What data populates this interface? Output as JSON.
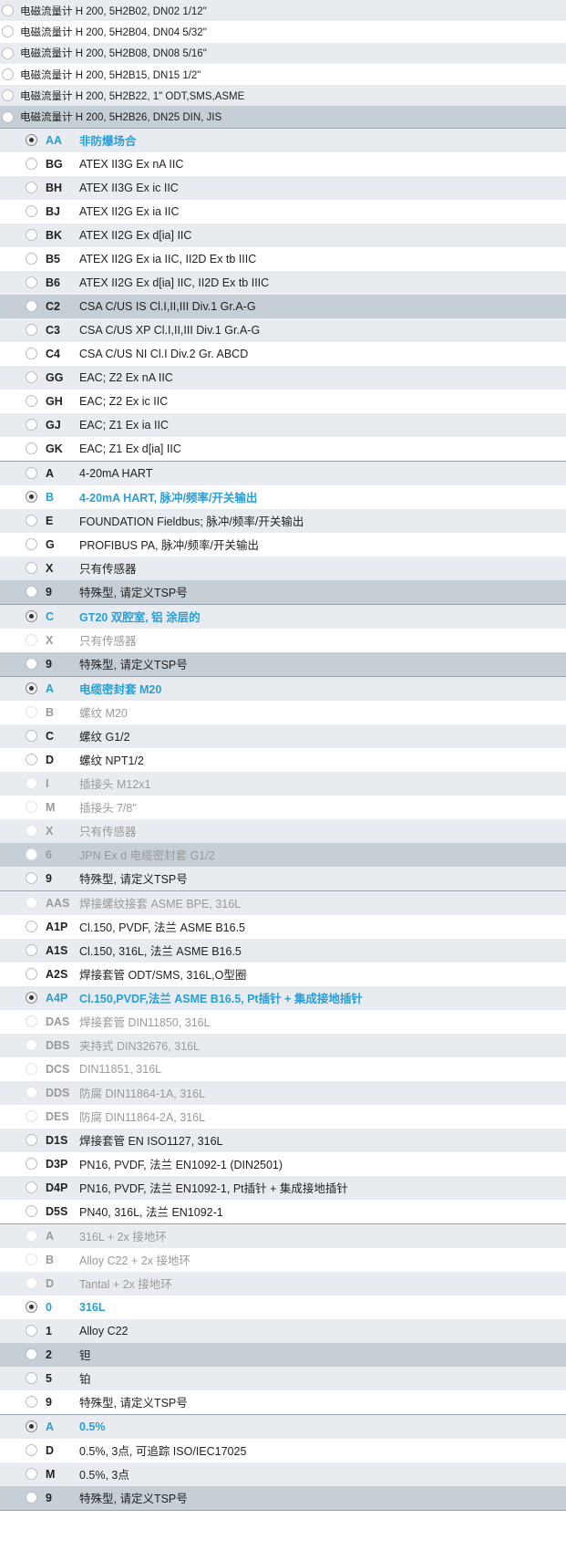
{
  "colors": {
    "selected": "#2a9fd6",
    "row_alt": "#e8ecf0",
    "row_highlight": "#c6cfd6",
    "disabled_text": "#9a9a9a"
  },
  "top_options": [
    {
      "label": "电磁流量计 H 200, 5H2B02, DN02 1/12\"",
      "bg": "grey"
    },
    {
      "label": "电磁流量计 H 200, 5H2B04, DN04 5/32\"",
      "bg": "white"
    },
    {
      "label": "电磁流量计 H 200, 5H2B08, DN08 5/16\"",
      "bg": "grey"
    },
    {
      "label": "电磁流量计 H 200, 5H2B15, DN15 1/2\"",
      "bg": "white"
    },
    {
      "label": "电磁流量计 H 200, 5H2B22, 1\" ODT,SMS,ASME",
      "bg": "grey"
    },
    {
      "label": "电磁流量计 H 200, 5H2B26, DN25 DIN, JIS",
      "bg": "dark"
    }
  ],
  "sections": [
    {
      "options": [
        {
          "code": "AA",
          "text": "非防爆场合",
          "selected": true
        },
        {
          "code": "BG",
          "text": "ATEX II3G Ex nA IIC"
        },
        {
          "code": "BH",
          "text": "ATEX II3G Ex ic IIC"
        },
        {
          "code": "BJ",
          "text": "ATEX II2G Ex ia IIC"
        },
        {
          "code": "BK",
          "text": "ATEX II2G Ex d[ia] IIC"
        },
        {
          "code": "B5",
          "text": "ATEX II2G Ex ia IIC, II2D Ex tb IIIC"
        },
        {
          "code": "B6",
          "text": "ATEX II2G Ex d[ia] IIC, II2D Ex tb IIIC"
        },
        {
          "code": "C2",
          "text": "CSA C/US IS Cl.I,II,III Div.1 Gr.A-G",
          "highlight": true
        },
        {
          "code": "C3",
          "text": "CSA C/US XP Cl.I,II,III Div.1 Gr.A-G"
        },
        {
          "code": "C4",
          "text": "CSA C/US NI Cl.I Div.2 Gr. ABCD"
        },
        {
          "code": "GG",
          "text": "EAC; Z2 Ex nA IIC"
        },
        {
          "code": "GH",
          "text": "EAC; Z2 Ex ic IIC"
        },
        {
          "code": "GJ",
          "text": "EAC; Z1 Ex ia IIC"
        },
        {
          "code": "GK",
          "text": "EAC; Z1 Ex d[ia] IIC"
        }
      ]
    },
    {
      "options": [
        {
          "code": "A",
          "text": "4-20mA HART"
        },
        {
          "code": "B",
          "text": "4-20mA HART, 脉冲/频率/开关输出",
          "selected": true
        },
        {
          "code": "E",
          "text": "FOUNDATION Fieldbus; 脉冲/频率/开关输出"
        },
        {
          "code": "G",
          "text": "PROFIBUS PA, 脉冲/频率/开关输出"
        },
        {
          "code": "X",
          "text": "只有传感器"
        },
        {
          "code": "9",
          "text": "特殊型, 请定义TSP号",
          "highlight": true
        }
      ]
    },
    {
      "options": [
        {
          "code": "C",
          "text": "GT20 双腔室, 铝 涂层的",
          "selected": true
        },
        {
          "code": "X",
          "text": "只有传感器",
          "disabled": true
        },
        {
          "code": "9",
          "text": "特殊型, 请定义TSP号",
          "highlight": true
        }
      ]
    },
    {
      "options": [
        {
          "code": "A",
          "text": "电缆密封套 M20",
          "selected": true
        },
        {
          "code": "B",
          "text": "螺纹 M20",
          "disabled": true
        },
        {
          "code": "C",
          "text": "螺纹 G1/2"
        },
        {
          "code": "D",
          "text": "螺纹 NPT1/2"
        },
        {
          "code": "I",
          "text": "插接头 M12x1",
          "disabled": true
        },
        {
          "code": "M",
          "text": "插接头 7/8\"",
          "disabled": true
        },
        {
          "code": "X",
          "text": "只有传感器",
          "disabled": true
        },
        {
          "code": "6",
          "text": "JPN Ex d 电缆密封套 G1/2",
          "disabled": true,
          "highlight": true
        },
        {
          "code": "9",
          "text": "特殊型, 请定义TSP号"
        }
      ]
    },
    {
      "options": [
        {
          "code": "AAS",
          "text": "焊接螺纹接套 ASME BPE, 316L",
          "disabled": true
        },
        {
          "code": "A1P",
          "text": "Cl.150, PVDF, 法兰 ASME B16.5"
        },
        {
          "code": "A1S",
          "text": "Cl.150, 316L, 法兰 ASME B16.5"
        },
        {
          "code": "A2S",
          "text": "焊接套管 ODT/SMS, 316L,O型圈"
        },
        {
          "code": "A4P",
          "text": "Cl.150,PVDF,法兰 ASME B16.5, Pt插针 + 集成接地插针",
          "selected": true
        },
        {
          "code": "DAS",
          "text": "焊接套管 DIN11850, 316L",
          "disabled": true
        },
        {
          "code": "DBS",
          "text": "夹持式 DIN32676, 316L",
          "disabled": true
        },
        {
          "code": "DCS",
          "text": "DIN11851, 316L",
          "disabled": true
        },
        {
          "code": "DDS",
          "text": "防腐 DIN11864-1A, 316L",
          "disabled": true
        },
        {
          "code": "DES",
          "text": "防腐 DIN11864-2A, 316L",
          "disabled": true
        },
        {
          "code": "D1S",
          "text": "焊接套管 EN ISO1127, 316L"
        },
        {
          "code": "D3P",
          "text": "PN16, PVDF, 法兰 EN1092-1 (DIN2501)"
        },
        {
          "code": "D4P",
          "text": "PN16, PVDF, 法兰 EN1092-1, Pt插针 + 集成接地插针"
        },
        {
          "code": "D5S",
          "text": "PN40, 316L, 法兰 EN1092-1"
        }
      ]
    },
    {
      "options": [
        {
          "code": "A",
          "text": "316L + 2x 接地环",
          "disabled": true
        },
        {
          "code": "B",
          "text": "Alloy C22 + 2x 接地环",
          "disabled": true
        },
        {
          "code": "D",
          "text": "Tantal + 2x 接地环",
          "disabled": true
        },
        {
          "code": "0",
          "text": "316L",
          "selected": true
        },
        {
          "code": "1",
          "text": "Alloy C22"
        },
        {
          "code": "2",
          "text": "钽",
          "highlight": true
        },
        {
          "code": "5",
          "text": "铂"
        },
        {
          "code": "9",
          "text": "特殊型, 请定义TSP号"
        }
      ]
    },
    {
      "options": [
        {
          "code": "A",
          "text": "0.5%",
          "selected": true
        },
        {
          "code": "D",
          "text": "0.5%, 3点, 可追踪 ISO/IEC17025"
        },
        {
          "code": "M",
          "text": "0.5%, 3点"
        },
        {
          "code": "9",
          "text": "特殊型, 请定义TSP号",
          "highlight": true
        }
      ]
    }
  ]
}
